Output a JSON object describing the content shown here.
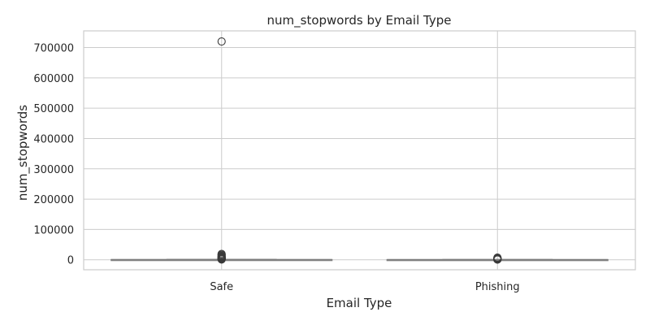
{
  "chart_data": {
    "type": "boxplot",
    "title": "num_stopwords by Email Type",
    "xlabel": "Email Type",
    "ylabel": "num_stopwords",
    "categories": [
      "Safe",
      "Phishing"
    ],
    "ylim": [
      -33000,
      755000
    ],
    "yticks": [
      0,
      100000,
      200000,
      300000,
      400000,
      500000,
      600000,
      700000
    ],
    "grid": true,
    "box_color": "#a6cee3",
    "line_color": "#7f7f7f",
    "boxes": [
      {
        "category": "Safe",
        "whisker_low": 0,
        "q1": 80,
        "median": 180,
        "q3": 400,
        "whisker_high": 950,
        "outliers": [
          720000,
          19000,
          16000,
          13000,
          11000,
          9000,
          7500,
          6000,
          5000,
          4000,
          3200,
          2500,
          1900,
          1400,
          1100
        ]
      },
      {
        "category": "Phishing",
        "whisker_low": 0,
        "q1": 50,
        "median": 120,
        "q3": 260,
        "whisker_high": 600,
        "outliers": [
          7000,
          5500,
          4500,
          3600,
          2800,
          2200,
          1700,
          1300,
          1000,
          800
        ]
      }
    ]
  }
}
